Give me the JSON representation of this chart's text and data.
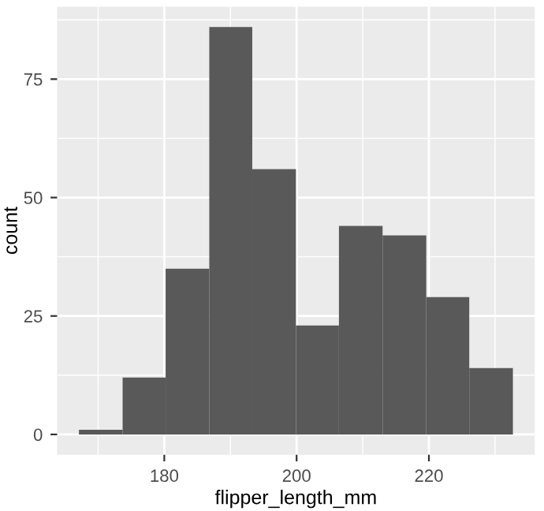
{
  "chart_data": {
    "type": "histogram",
    "xlabel": "flipper_length_mm",
    "ylabel": "count",
    "bins": [
      167.1,
      173.7,
      180.2,
      186.8,
      193.3,
      199.9,
      206.4,
      213.0,
      219.6,
      226.1,
      232.7
    ],
    "values": [
      1,
      12,
      35,
      86,
      56,
      23,
      44,
      42,
      29,
      14
    ],
    "color": "#595959",
    "xlim": [
      163.8,
      236.0
    ],
    "xticks": [
      180,
      200,
      220
    ],
    "ylim": [
      -4.3,
      90.3
    ],
    "yticks": [
      0,
      25,
      50,
      75
    ],
    "grid": true
  }
}
